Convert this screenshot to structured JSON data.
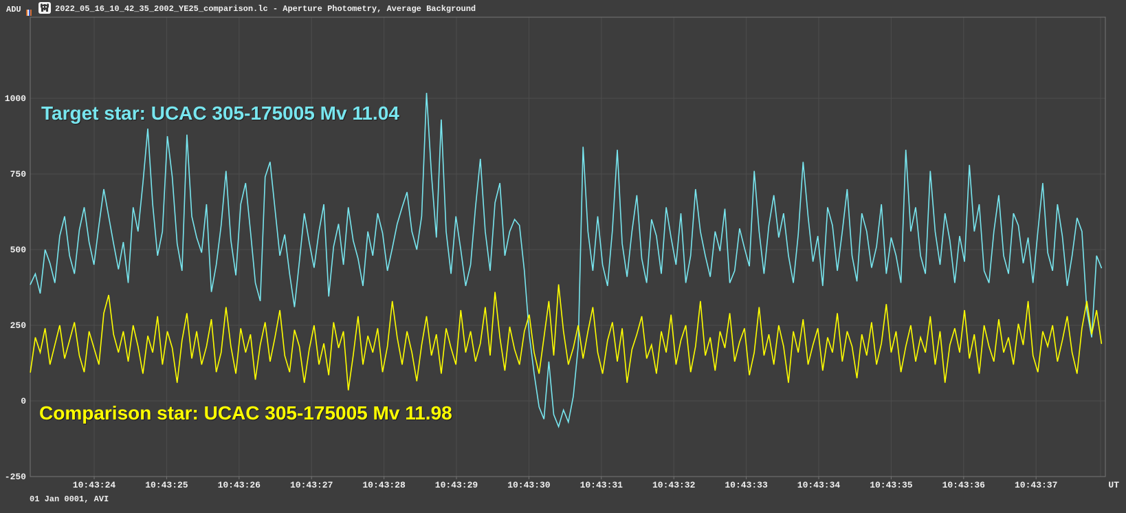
{
  "header": {
    "unit_label": "ADU",
    "title": "2022_05_16_10_42_35_2002_YE25_comparison.lc - Aperture Photometry, Average Background",
    "icon": "lightcurve-app-icon"
  },
  "footer": {
    "text": "01 Jan 0001, AVI"
  },
  "annotations": {
    "target": "Target star: UCAC 305-175005 Mv 11.04",
    "comparison": "Comparison star: UCAC 305-175005 Mv 11.98"
  },
  "colors": {
    "background": "#3d3d3d",
    "grid": "#4d4d4d",
    "frame": "#757575",
    "text": "#f0f0f0",
    "target_series": "#78e6ef",
    "comparison_series": "#ffff00",
    "flag_orange": "#d06a28",
    "flag_white": "#f0f0f0",
    "flag_blue": "#3c5cc8"
  },
  "chart_data": {
    "type": "line",
    "title": "Aperture Photometry, Average Background",
    "ylabel": "ADU",
    "x_unit": "UT",
    "ylim": [
      -250,
      1268
    ],
    "yticks": [
      1000,
      750,
      500,
      250,
      0,
      -250
    ],
    "ytick_labels": [
      "1000",
      "750",
      "500",
      "250",
      "0",
      "-250"
    ],
    "xtick_seconds": [
      24,
      25,
      26,
      27,
      28,
      29,
      30,
      31,
      32,
      33,
      34,
      35,
      36,
      37
    ],
    "xtick_labels": [
      "10:43:24",
      "10:43:25",
      "10:43:26",
      "10:43:27",
      "10:43:28",
      "10:43:29",
      "10:43:30",
      "10:43:31",
      "10:43:32",
      "10:43:33",
      "10:43:34",
      "10:43:35",
      "10:43:36",
      "10:43:37"
    ],
    "grid": true,
    "legend_position": "annotations-on-plot",
    "sampling": {
      "time_base": "10:43",
      "start_s": 23.12,
      "step_s": 0.0675,
      "points": 220
    },
    "series": [
      {
        "name": "Target star: UCAC 305-175005 Mv 11.04",
        "color": "#78e6ef",
        "values": [
          385,
          420,
          355,
          500,
          455,
          390,
          545,
          610,
          480,
          420,
          565,
          640,
          525,
          450,
          580,
          700,
          610,
          520,
          435,
          525,
          390,
          640,
          560,
          720,
          900,
          650,
          480,
          560,
          875,
          740,
          520,
          430,
          880,
          610,
          540,
          490,
          650,
          360,
          450,
          580,
          760,
          530,
          415,
          650,
          720,
          560,
          390,
          330,
          740,
          790,
          635,
          480,
          550,
          420,
          310,
          460,
          620,
          525,
          440,
          560,
          650,
          345,
          510,
          585,
          450,
          640,
          530,
          470,
          380,
          560,
          480,
          620,
          555,
          430,
          505,
          585,
          640,
          690,
          560,
          500,
          610,
          1018,
          750,
          540,
          930,
          560,
          420,
          610,
          500,
          380,
          450,
          640,
          800,
          560,
          430,
          655,
          720,
          480,
          560,
          600,
          580,
          430,
          220,
          90,
          -20,
          -60,
          130,
          -45,
          -85,
          -30,
          -70,
          15,
          180,
          840,
          560,
          430,
          610,
          450,
          380,
          565,
          830,
          520,
          410,
          560,
          680,
          470,
          390,
          600,
          545,
          420,
          640,
          540,
          450,
          620,
          390,
          480,
          700,
          560,
          480,
          410,
          560,
          495,
          635,
          390,
          430,
          570,
          505,
          445,
          760,
          560,
          420,
          580,
          680,
          540,
          620,
          480,
          390,
          550,
          790,
          610,
          460,
          545,
          380,
          640,
          580,
          430,
          560,
          700,
          480,
          395,
          620,
          560,
          440,
          510,
          650,
          420,
          540,
          480,
          390,
          830,
          560,
          640,
          480,
          420,
          760,
          560,
          450,
          620,
          530,
          390,
          545,
          460,
          780,
          560,
          650,
          430,
          390,
          560,
          680,
          480,
          420,
          620,
          580,
          455,
          540,
          390,
          560,
          720,
          490,
          430,
          650,
          545,
          380,
          480,
          605,
          560,
          300,
          210,
          480,
          440
        ]
      },
      {
        "name": "Comparison star: UCAC 305-175005 Mv 11.98",
        "color": "#ffff00",
        "values": [
          95,
          210,
          160,
          240,
          120,
          185,
          250,
          140,
          200,
          260,
          150,
          95,
          230,
          175,
          120,
          290,
          350,
          220,
          160,
          230,
          130,
          250,
          180,
          90,
          215,
          160,
          280,
          120,
          230,
          175,
          60,
          200,
          290,
          140,
          230,
          120,
          180,
          270,
          95,
          160,
          310,
          180,
          90,
          240,
          160,
          220,
          70,
          185,
          260,
          130,
          210,
          300,
          150,
          95,
          235,
          180,
          60,
          170,
          250,
          120,
          190,
          85,
          260,
          175,
          230,
          35,
          150,
          280,
          120,
          215,
          160,
          240,
          95,
          180,
          330,
          210,
          120,
          230,
          160,
          65,
          185,
          280,
          150,
          220,
          90,
          240,
          175,
          120,
          300,
          160,
          230,
          130,
          190,
          310,
          150,
          360,
          210,
          100,
          245,
          170,
          120,
          230,
          285,
          160,
          90,
          210,
          330,
          150,
          385,
          230,
          120,
          175,
          250,
          140,
          230,
          310,
          160,
          90,
          200,
          260,
          130,
          240,
          60,
          170,
          220,
          280,
          140,
          185,
          90,
          230,
          160,
          285,
          120,
          200,
          250,
          95,
          180,
          330,
          150,
          210,
          100,
          230,
          175,
          290,
          130,
          195,
          240,
          85,
          160,
          310,
          150,
          220,
          120,
          250,
          180,
          60,
          230,
          160,
          270,
          120,
          185,
          240,
          100,
          210,
          160,
          290,
          130,
          230,
          180,
          75,
          220,
          150,
          260,
          120,
          190,
          320,
          160,
          230,
          95,
          180,
          250,
          130,
          210,
          160,
          280,
          120,
          230,
          60,
          185,
          240,
          160,
          300,
          140,
          220,
          90,
          250,
          180,
          130,
          270,
          160,
          210,
          120,
          255,
          185,
          330,
          150,
          95,
          230,
          180,
          250,
          130,
          200,
          280,
          160,
          90,
          240,
          330,
          220,
          300,
          190
        ]
      }
    ]
  }
}
